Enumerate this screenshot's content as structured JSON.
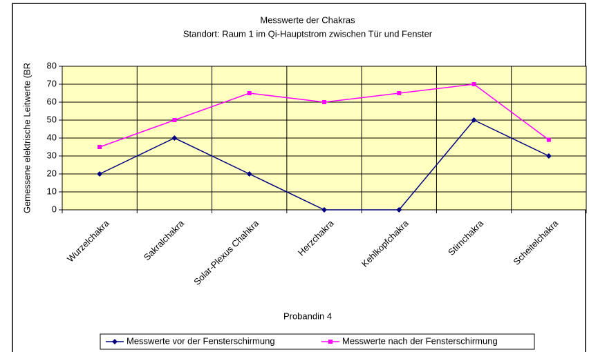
{
  "chart_data": {
    "type": "line",
    "title": "Messwerte der Chakras",
    "subtitle": "Standort: Raum 1 im Qi-Hauptstrom zwischen Tür und Fenster",
    "x_label": "Probandin 4",
    "y_label": "Gemessene elektrische Leitwerte (BR",
    "categories": [
      "Wurzelchakra",
      "Sakralchakra",
      "Solar-Plexus Chahkra",
      "Herzchakra",
      "Kehlkopfchakra",
      "Stirnchakra",
      "Scheitelchakra"
    ],
    "series": [
      {
        "name": "Messwerte vor der Fensterschirmung",
        "color": "#000080",
        "marker": "diamond",
        "values": [
          20,
          40,
          20,
          0,
          0,
          50,
          30
        ]
      },
      {
        "name": "Messwerte nach der Fensterschirmung",
        "color": "#ff00ff",
        "marker": "square",
        "values": [
          35,
          50,
          65,
          60,
          65,
          70,
          39
        ]
      }
    ],
    "ylim": [
      0,
      80
    ],
    "yticks": [
      0,
      10,
      20,
      30,
      40,
      50,
      60,
      70,
      80
    ],
    "grid": true,
    "legend": "bottom",
    "plot_background": "#ffffc0"
  }
}
